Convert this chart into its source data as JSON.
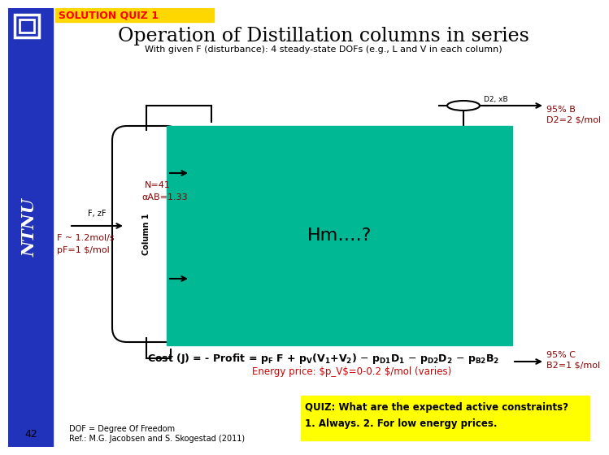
{
  "title": "Operation of Distillation columns in series",
  "subtitle": "With given F (disturbance): 4 steady-state DOFs (e.g., L and V in each column)",
  "header_label": "SOLUTION QUIZ 1",
  "header_bg": "#FFD700",
  "header_text_color": "#FF0000",
  "slide_bg": "#FFFFFF",
  "left_bar_color": "#2233BB",
  "teal_box_color": "#00B894",
  "teal_box_text": "Hm….?",
  "left_label1": "N=41",
  "left_label2": "αAB=1.33",
  "left_label3": "Column 1",
  "feed_label1": "F ~ 1.2mol/s",
  "feed_label2": "pF=1 $/mol",
  "right_top1": "95% B",
  "right_top2": "D2=2 $/mol",
  "right_bot1": "95% C",
  "right_bot2": "B2=1 $/mol",
  "d2_label": "D2, xB",
  "quiz_text": "QUIZ: What are the expected active constraints?\n1. Always. 2. For low energy prices.",
  "quiz_bg": "#FFFF00",
  "page_num": "42",
  "footnote1": "DOF = Degree Of Freedom",
  "footnote2": "Ref.: M.G. Jacobsen and S. Skogestad (2011)"
}
